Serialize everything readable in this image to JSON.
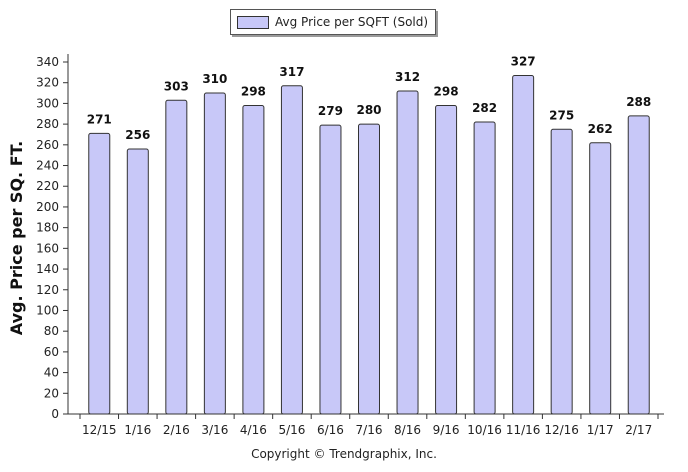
{
  "legend": {
    "label": "Avg Price per SQFT (Sold)"
  },
  "copyright": "Copyright © Trendgraphix, Inc.",
  "colors": {
    "bar_fill": "#c8c8f8",
    "bar_stroke": "#333333",
    "axis": "#333333"
  },
  "chart_data": {
    "type": "bar",
    "categories": [
      "12/15",
      "1/16",
      "2/16",
      "3/16",
      "4/16",
      "5/16",
      "6/16",
      "7/16",
      "8/16",
      "9/16",
      "10/16",
      "11/16",
      "12/16",
      "1/17",
      "2/17"
    ],
    "series": [
      {
        "name": "Avg Price per SQFT (Sold)",
        "values": [
          271,
          256,
          303,
          310,
          298,
          317,
          279,
          280,
          312,
          298,
          282,
          327,
          275,
          262,
          288
        ]
      }
    ],
    "ylabel": "Avg. Price per SQ. FT.",
    "xlabel": "",
    "ylim": [
      0,
      340
    ],
    "yticks": [
      0,
      20,
      40,
      60,
      80,
      100,
      120,
      140,
      160,
      180,
      200,
      220,
      240,
      260,
      280,
      300,
      320,
      340
    ],
    "grid": false,
    "legend_position": "top-center",
    "data_labels": true
  }
}
